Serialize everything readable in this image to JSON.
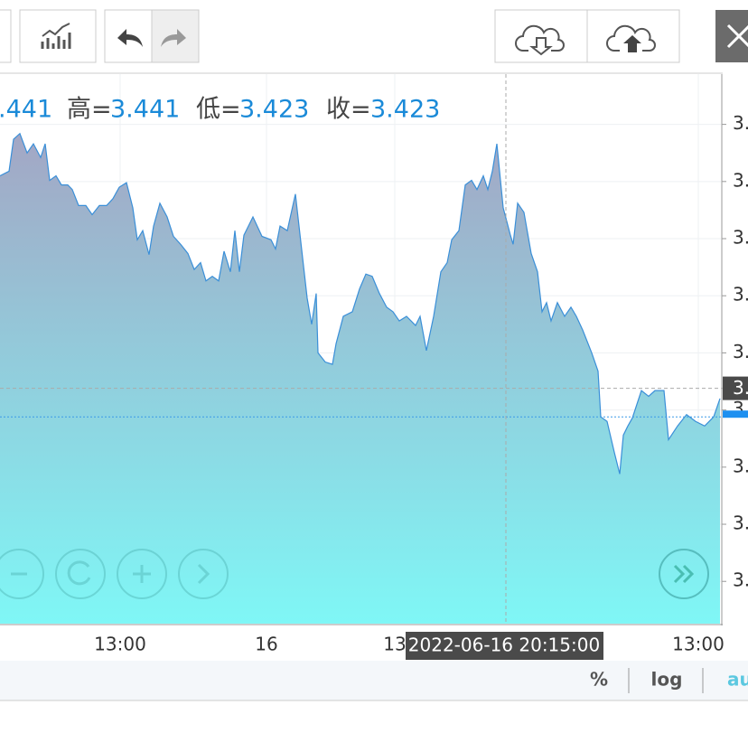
{
  "chart_data": {
    "type": "area",
    "x": [
      0,
      10,
      15,
      22,
      30,
      37,
      45,
      50,
      55,
      62,
      68,
      75,
      80,
      87,
      95,
      102,
      110,
      118,
      125,
      132,
      140,
      147,
      152,
      158,
      165,
      170,
      177,
      185,
      192,
      200,
      208,
      215,
      222,
      228,
      235,
      242,
      248,
      255,
      260,
      265,
      270,
      280,
      290,
      300,
      305,
      310,
      318,
      327,
      335,
      340,
      345,
      350,
      352,
      360,
      368,
      372,
      380,
      390,
      398,
      405,
      412,
      420,
      428,
      435,
      442,
      450,
      460,
      465,
      472,
      480,
      488,
      495,
      500,
      508,
      515,
      522,
      528,
      535,
      540,
      545,
      550,
      557,
      565,
      568,
      573,
      580,
      588,
      595,
      600,
      605,
      610,
      617,
      625,
      632,
      638,
      645,
      655,
      662,
      665,
      672,
      680,
      686,
      690,
      695,
      700,
      710,
      718,
      725,
      735,
      740,
      750,
      760,
      770,
      780,
      790,
      797
    ],
    "values": [
      3.4455,
      3.4459,
      3.4487,
      3.4492,
      3.4475,
      3.4483,
      3.4471,
      3.4483,
      3.4451,
      3.4455,
      3.4447,
      3.4447,
      3.4443,
      3.4429,
      3.4429,
      3.4421,
      3.4429,
      3.4429,
      3.4435,
      3.4445,
      3.4449,
      3.4427,
      3.4399,
      3.4407,
      3.4386,
      3.4411,
      3.4431,
      3.4419,
      3.4402,
      3.4395,
      3.4387,
      3.4373,
      3.4379,
      3.4363,
      3.4367,
      3.4363,
      3.4389,
      3.4371,
      3.4407,
      3.4371,
      3.4403,
      3.4419,
      3.4402,
      3.4399,
      3.4391,
      3.4411,
      3.4407,
      3.4439,
      3.4383,
      3.4348,
      3.4325,
      3.4352,
      3.43,
      3.4292,
      3.429,
      3.4308,
      3.4332,
      3.4336,
      3.4356,
      3.4369,
      3.4367,
      3.4352,
      3.434,
      3.4336,
      3.4328,
      3.4332,
      3.4324,
      3.4332,
      3.4302,
      3.4332,
      3.4371,
      3.4379,
      3.4399,
      3.4407,
      3.4447,
      3.4451,
      3.4443,
      3.4455,
      3.4443,
      3.4459,
      3.4483,
      3.4427,
      3.4403,
      3.4395,
      3.4431,
      3.4423,
      3.4387,
      3.4371,
      3.4336,
      3.4344,
      3.4328,
      3.4344,
      3.4332,
      3.434,
      3.4332,
      3.432,
      3.43,
      3.4284,
      3.4244,
      3.424,
      3.4213,
      3.4194,
      3.4228,
      3.4236,
      3.4243,
      3.4267,
      3.4262,
      3.4267,
      3.4267,
      3.4224,
      3.4236,
      3.4246,
      3.424,
      3.4236,
      3.4244,
      3.426
    ],
    "color": "#3a8fd8",
    "xlim": [
      0,
      800
    ],
    "ylim": [
      3.4063,
      3.4544
    ],
    "yticks": [
      {
        "value": 3.45,
        "label": "3."
      },
      {
        "value": 3.445,
        "label": "3."
      },
      {
        "value": 3.44,
        "label": "3."
      },
      {
        "value": 3.435,
        "label": "3."
      },
      {
        "value": 3.43,
        "label": "3."
      },
      {
        "value": 3.425,
        "label": "3."
      },
      {
        "value": 3.42,
        "label": "3."
      },
      {
        "value": 3.415,
        "label": "3."
      },
      {
        "value": 3.41,
        "label": "3."
      }
    ],
    "xticks": [
      {
        "value": 133,
        "label": "13:00"
      },
      {
        "value": 295,
        "label": "16"
      },
      {
        "value": 437,
        "label": "13"
      },
      {
        "value": 773,
        "label": "13:00"
      }
    ],
    "grid": true,
    "ohlc": {
      "open": ".441",
      "high_label": "高=",
      "high": "3.441",
      "low_label": "低=",
      "low": "3.423",
      "close_label": "收=",
      "close": "3.423"
    },
    "crosshair": {
      "x": 560,
      "y": 3.4269,
      "x_label": "2022-06-16 20:15:00",
      "y_label": "3."
    },
    "last_price": 3.4244
  },
  "bottom_bar": {
    "buttons": [
      "%",
      "log",
      "au"
    ]
  }
}
